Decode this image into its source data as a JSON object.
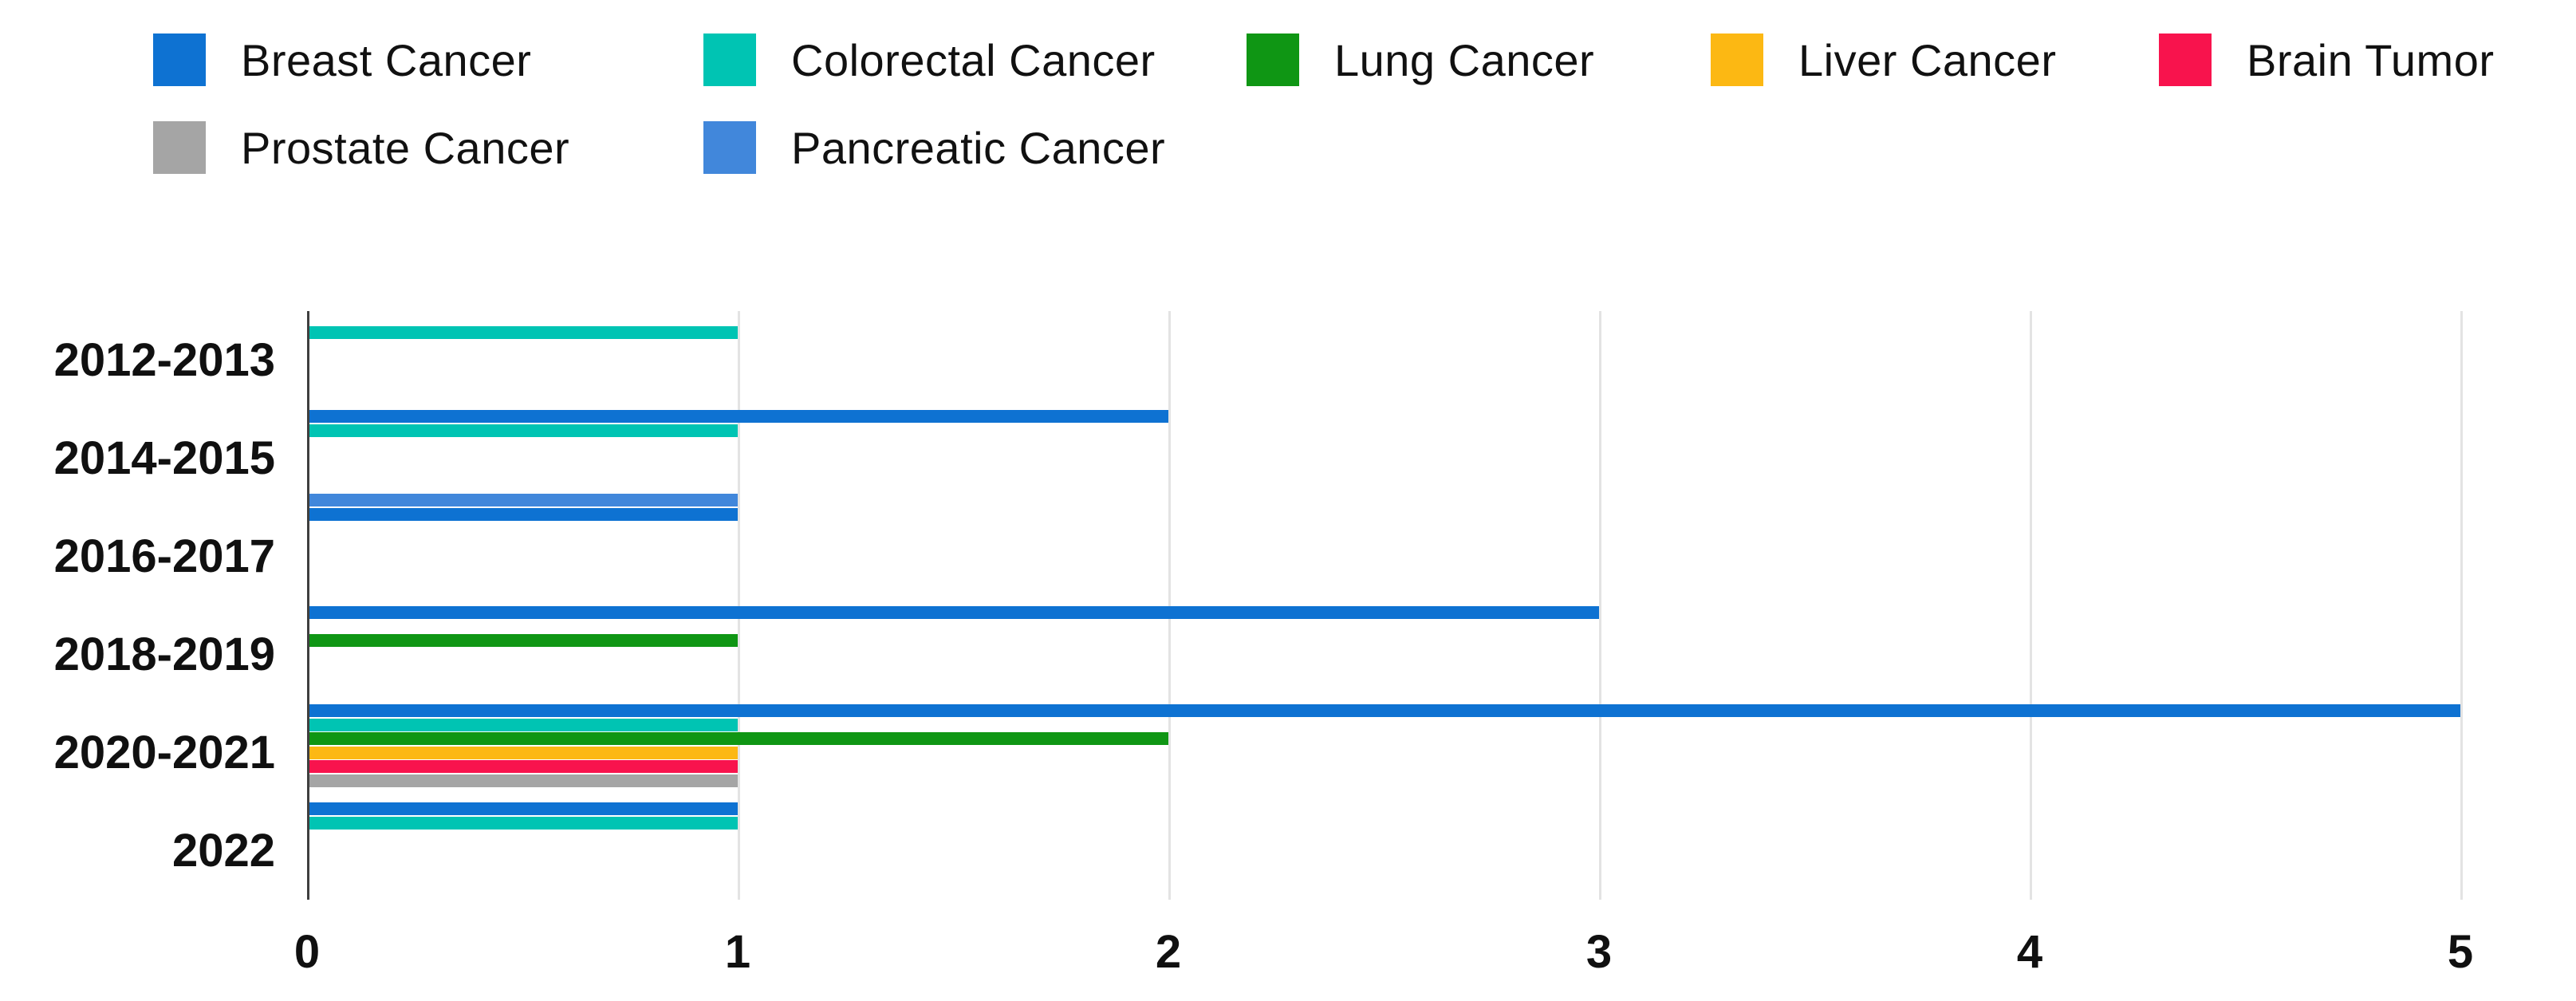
{
  "page": {
    "background": "#ffffff"
  },
  "legend": {
    "position": "top-left",
    "rows": 2,
    "items": [
      {
        "label": "Breast Cancer",
        "color": "#0e72d2"
      },
      {
        "label": "Colorectal Cancer",
        "color": "#00c4b3"
      },
      {
        "label": "Lung Cancer",
        "color": "#0f9614"
      },
      {
        "label": "Liver Cancer",
        "color": "#fcb813"
      },
      {
        "label": "Brain Tumor",
        "color": "#f8134d"
      },
      {
        "label": "Prostate Cancer",
        "color": "#a5a5a5"
      },
      {
        "label": "Pancreatic Cancer",
        "color": "#4187db"
      }
    ]
  },
  "chart_data": {
    "type": "bar",
    "orientation": "horizontal",
    "title": "",
    "xlabel": "",
    "ylabel": "",
    "categories": [
      "2012-2013",
      "2014-2015",
      "2016-2017",
      "2018-2019",
      "2020-2021",
      "2022"
    ],
    "series": [
      {
        "name": "Breast Cancer",
        "color": "#0e72d2",
        "values": [
          0,
          2,
          1,
          3,
          5,
          1
        ]
      },
      {
        "name": "Colorectal Cancer",
        "color": "#00c4b3",
        "values": [
          1,
          1,
          0,
          0,
          1,
          1
        ]
      },
      {
        "name": "Lung Cancer",
        "color": "#0f9614",
        "values": [
          0,
          0,
          0,
          1,
          2,
          0
        ]
      },
      {
        "name": "Liver Cancer",
        "color": "#fcb813",
        "values": [
          0,
          0,
          0,
          0,
          1,
          0
        ]
      },
      {
        "name": "Brain Tumor",
        "color": "#f8134d",
        "values": [
          0,
          0,
          0,
          0,
          1,
          0
        ]
      },
      {
        "name": "Prostate Cancer",
        "color": "#a5a5a5",
        "values": [
          0,
          0,
          0,
          0,
          1,
          0
        ]
      },
      {
        "name": "Pancreatic Cancer",
        "color": "#4187db",
        "values": [
          0,
          1,
          0,
          0,
          0,
          0
        ]
      }
    ],
    "x_ticks": [
      "0",
      "1",
      "2",
      "3",
      "4",
      "5"
    ],
    "xlim": [
      0,
      5
    ],
    "grid": true,
    "grid_color": "#e3e3e3",
    "axis_color": "#3f3f3f",
    "text_color": "#101010",
    "legend_position": "top"
  }
}
